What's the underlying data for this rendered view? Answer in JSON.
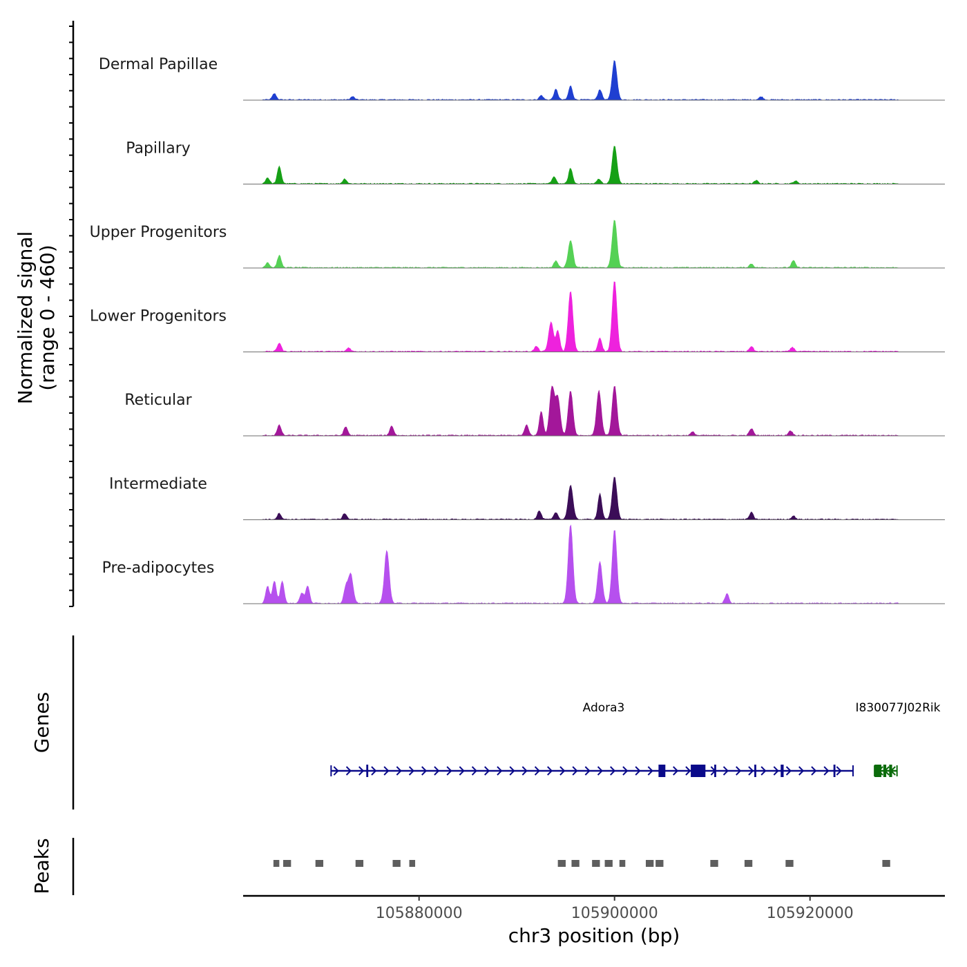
{
  "chart_data": {
    "type": "area",
    "chromosome": "chr3",
    "region": {
      "start": 105862000,
      "end": 105933800
    },
    "xlabel": "chr3 position (bp)",
    "xticks": [
      {
        "value": 105880000,
        "label": "105880000"
      },
      {
        "value": 105900000,
        "label": "105900000"
      },
      {
        "value": 105920000,
        "label": "105920000"
      }
    ],
    "ylabel_line1": "Normalized signal",
    "ylabel_line2": "(range 0 - 460)",
    "y_range": [
      0,
      460
    ],
    "tracks": [
      {
        "name": "Dermal Papillae",
        "color": "#1f3fd1",
        "peaks": [
          [
            105865200,
            36
          ],
          [
            105873200,
            18
          ],
          [
            105892500,
            25
          ],
          [
            105894000,
            60
          ],
          [
            105895500,
            80
          ],
          [
            105898500,
            60
          ],
          [
            105900000,
            230
          ],
          [
            105915000,
            18
          ]
        ]
      },
      {
        "name": "Papillary",
        "color": "#16a016",
        "peaks": [
          [
            105864500,
            35
          ],
          [
            105865700,
            100
          ],
          [
            105872400,
            28
          ],
          [
            105893800,
            40
          ],
          [
            105895500,
            90
          ],
          [
            105898400,
            28
          ],
          [
            105900000,
            220
          ],
          [
            105914500,
            18
          ],
          [
            105918500,
            16
          ]
        ]
      },
      {
        "name": "Upper Progenitors",
        "color": "#55d155",
        "peaks": [
          [
            105864500,
            30
          ],
          [
            105865700,
            70
          ],
          [
            105894000,
            40
          ],
          [
            105895500,
            160
          ],
          [
            105900000,
            280
          ],
          [
            105914000,
            22
          ],
          [
            105918300,
            40
          ]
        ]
      },
      {
        "name": "Lower Progenitors",
        "color": "#ee22dd",
        "peaks": [
          [
            105865700,
            50
          ],
          [
            105872800,
            22
          ],
          [
            105892000,
            30
          ],
          [
            105893500,
            170
          ],
          [
            105894200,
            120
          ],
          [
            105895500,
            350
          ],
          [
            105898500,
            80
          ],
          [
            105900000,
            410
          ],
          [
            105914000,
            30
          ],
          [
            105918200,
            25
          ]
        ]
      },
      {
        "name": "Reticular",
        "color": "#a3179a",
        "peaks": [
          [
            105865700,
            60
          ],
          [
            105872500,
            50
          ],
          [
            105877200,
            55
          ],
          [
            105891000,
            60
          ],
          [
            105892500,
            140
          ],
          [
            105893600,
            280
          ],
          [
            105894200,
            220
          ],
          [
            105895500,
            260
          ],
          [
            105898400,
            260
          ],
          [
            105900000,
            290
          ],
          [
            105908000,
            20
          ],
          [
            105914000,
            40
          ],
          [
            105918000,
            28
          ]
        ]
      },
      {
        "name": "Intermediate",
        "color": "#3b0d57",
        "peaks": [
          [
            105865700,
            35
          ],
          [
            105872400,
            35
          ],
          [
            105892300,
            50
          ],
          [
            105894000,
            40
          ],
          [
            105895500,
            200
          ],
          [
            105898500,
            150
          ],
          [
            105900000,
            250
          ],
          [
            105914000,
            40
          ],
          [
            105918300,
            20
          ]
        ]
      },
      {
        "name": "Pre-adipocytes",
        "color": "#b650ee",
        "peaks": [
          [
            105864500,
            100
          ],
          [
            105865200,
            130
          ],
          [
            105866000,
            130
          ],
          [
            105868000,
            60
          ],
          [
            105868600,
            100
          ],
          [
            105872500,
            90
          ],
          [
            105873000,
            170
          ],
          [
            105876700,
            310
          ],
          [
            105895500,
            460
          ],
          [
            105898500,
            240
          ],
          [
            105900000,
            430
          ],
          [
            105911500,
            55
          ]
        ]
      }
    ],
    "genes": [
      {
        "name": "Adora3",
        "color": "#0a0a8a",
        "strand": "+",
        "start": 105871000,
        "end": 105924400,
        "exons": [
          [
            105874600,
            105874800
          ],
          [
            105904500,
            105905200
          ],
          [
            105907800,
            105909300
          ],
          [
            105910200,
            105910400
          ],
          [
            105914300,
            105914500
          ],
          [
            105917000,
            105917300
          ],
          [
            105922400,
            105922600
          ]
        ]
      },
      {
        "name": "I830077J02Rik",
        "color": "#0b6b0b",
        "strand": "-",
        "start": 105926600,
        "end": 105928900,
        "exons": [
          [
            105926600,
            105927300
          ],
          [
            105927500,
            105927800
          ],
          [
            105928100,
            105928400
          ]
        ]
      }
    ],
    "peaks_track": {
      "label": "Peaks",
      "color": "#5e5e5e",
      "intervals": [
        [
          105865100,
          105865700
        ],
        [
          105866100,
          105866900
        ],
        [
          105869400,
          105870200
        ],
        [
          105873500,
          105874300
        ],
        [
          105877300,
          105878100
        ],
        [
          105879000,
          105879600
        ],
        [
          105894200,
          105895000
        ],
        [
          105895600,
          105896400
        ],
        [
          105897700,
          105898500
        ],
        [
          105899000,
          105899800
        ],
        [
          105900500,
          105901100
        ],
        [
          105903200,
          105904000
        ],
        [
          105904200,
          105905000
        ],
        [
          105909800,
          105910600
        ],
        [
          105913300,
          105914100
        ],
        [
          105917500,
          105918300
        ],
        [
          105927400,
          105928200
        ]
      ]
    },
    "genes_track_label": "Genes"
  }
}
